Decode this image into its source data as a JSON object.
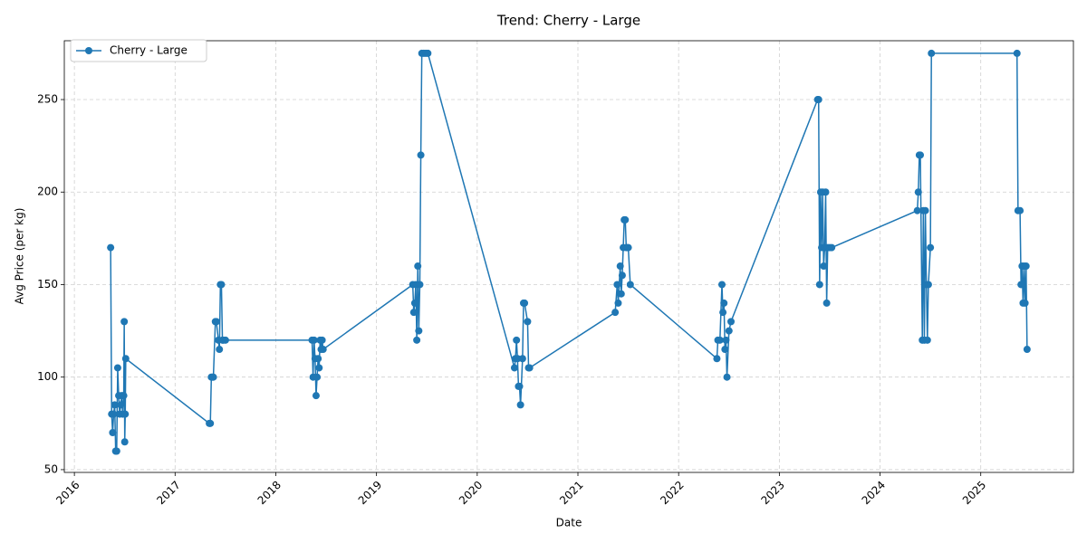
{
  "chart_data": {
    "type": "line",
    "title": "Trend: Cherry - Large",
    "xlabel": "Date",
    "ylabel": "Avg Price (per kg)",
    "x": [
      2016.36,
      2016.37,
      2016.38,
      2016.39,
      2016.4,
      2016.41,
      2016.42,
      2016.43,
      2016.44,
      2016.45,
      2016.46,
      2016.47,
      2016.48,
      2016.49,
      2016.495,
      2016.5,
      2016.505,
      2016.51,
      2017.34,
      2017.35,
      2017.36,
      2017.37,
      2017.38,
      2017.4,
      2017.41,
      2017.43,
      2017.44,
      2017.45,
      2017.46,
      2017.47,
      2017.48,
      2017.5,
      2018.36,
      2018.37,
      2018.38,
      2018.39,
      2018.4,
      2018.41,
      2018.42,
      2018.43,
      2018.44,
      2018.45,
      2018.46,
      2018.47,
      2019.36,
      2019.37,
      2019.38,
      2019.39,
      2019.4,
      2019.41,
      2019.42,
      2019.43,
      2019.44,
      2019.45,
      2019.47,
      2019.49,
      2019.51,
      2020.37,
      2020.38,
      2020.39,
      2020.4,
      2020.41,
      2020.42,
      2020.43,
      2020.45,
      2020.46,
      2020.47,
      2020.5,
      2020.51,
      2020.52,
      2021.37,
      2021.39,
      2021.4,
      2021.42,
      2021.43,
      2021.44,
      2021.45,
      2021.46,
      2021.47,
      2021.48,
      2021.49,
      2021.5,
      2021.52,
      2022.38,
      2022.39,
      2022.41,
      2022.43,
      2022.44,
      2022.45,
      2022.46,
      2022.47,
      2022.48,
      2022.5,
      2022.52,
      2023.38,
      2023.39,
      2023.4,
      2023.41,
      2023.42,
      2023.43,
      2023.44,
      2023.45,
      2023.46,
      2023.47,
      2023.48,
      2023.5,
      2023.52,
      2024.37,
      2024.38,
      2024.39,
      2024.4,
      2024.42,
      2024.43,
      2024.44,
      2024.45,
      2024.46,
      2024.47,
      2024.48,
      2024.5,
      2024.51,
      2025.36,
      2025.37,
      2025.39,
      2025.4,
      2025.41,
      2025.42,
      2025.43,
      2025.44,
      2025.45,
      2025.46
    ],
    "series": [
      {
        "name": "Cherry - Large",
        "color": "#1f77b4",
        "values": [
          170,
          80,
          70,
          80,
          85,
          60,
          60,
          105,
          90,
          80,
          85,
          90,
          80,
          90,
          130,
          65,
          80,
          110,
          75,
          75,
          100,
          100,
          100,
          130,
          130,
          120,
          115,
          150,
          150,
          120,
          120,
          120,
          120,
          100,
          120,
          110,
          90,
          100,
          110,
          105,
          120,
          115,
          120,
          115,
          150,
          135,
          140,
          150,
          120,
          160,
          125,
          150,
          220,
          275,
          275,
          275,
          275,
          105,
          110,
          120,
          110,
          95,
          95,
          85,
          110,
          140,
          140,
          130,
          105,
          105,
          135,
          150,
          140,
          160,
          145,
          155,
          170,
          185,
          185,
          170,
          170,
          170,
          150,
          110,
          120,
          120,
          150,
          135,
          140,
          115,
          120,
          100,
          125,
          130,
          250,
          250,
          150,
          200,
          170,
          200,
          160,
          170,
          200,
          140,
          170,
          170,
          170,
          190,
          200,
          220,
          220,
          120,
          190,
          120,
          190,
          150,
          120,
          150,
          170,
          275,
          275,
          190,
          190,
          150,
          160,
          140,
          160,
          140,
          160,
          115
        ]
      }
    ],
    "xlim": [
      2015.9,
      2025.92
    ],
    "xticks": [
      2016,
      2017,
      2018,
      2019,
      2020,
      2021,
      2022,
      2023,
      2024,
      2025
    ],
    "ylim": [
      48.5,
      281.8
    ],
    "yticks": [
      50,
      100,
      150,
      200,
      250
    ],
    "grid": true,
    "legend": "upper left"
  }
}
